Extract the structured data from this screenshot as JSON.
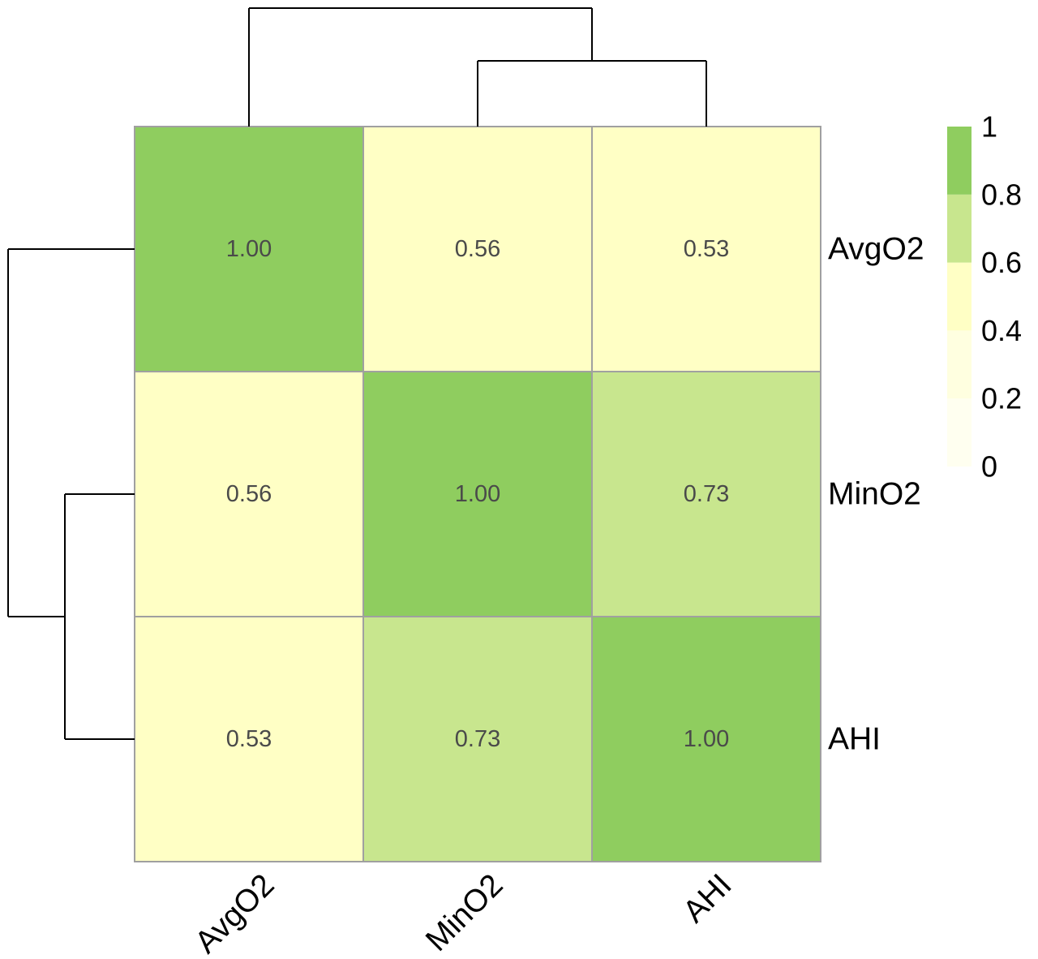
{
  "chart_data": {
    "type": "heatmap",
    "title": "",
    "xlabel": "",
    "ylabel": "",
    "rows": [
      "AvgO2",
      "MinO2",
      "AHI"
    ],
    "columns": [
      "AvgO2",
      "MinO2",
      "AHI"
    ],
    "values": [
      [
        1.0,
        0.56,
        0.53
      ],
      [
        0.56,
        1.0,
        0.73
      ],
      [
        0.53,
        0.73,
        1.0
      ]
    ],
    "cell_labels": [
      [
        "1.00",
        "0.56",
        "0.53"
      ],
      [
        "0.56",
        "1.00",
        "0.73"
      ],
      [
        "0.53",
        "0.73",
        "1.00"
      ]
    ],
    "legend": {
      "placement": "right",
      "min": 0,
      "max": 1,
      "ticks": [
        "0",
        "0.2",
        "0.4",
        "0.6",
        "0.8",
        "1"
      ],
      "bins": [
        {
          "from": 0.0,
          "to": 0.2,
          "color": "#fffff0"
        },
        {
          "from": 0.2,
          "to": 0.4,
          "color": "#ffffe0"
        },
        {
          "from": 0.4,
          "to": 0.6,
          "color": "#ffffc5"
        },
        {
          "from": 0.6,
          "to": 0.8,
          "color": "#c8e68e"
        },
        {
          "from": 0.8,
          "to": 1.0,
          "color": "#8fcd5f"
        }
      ]
    },
    "cell_border_color": "#a0a0a0",
    "dendrogram": {
      "columns": "top",
      "rows": "left",
      "merge_order": [
        [
          "MinO2",
          "AHI"
        ],
        [
          "AvgO2",
          "MinO2+AHI"
        ]
      ]
    }
  }
}
